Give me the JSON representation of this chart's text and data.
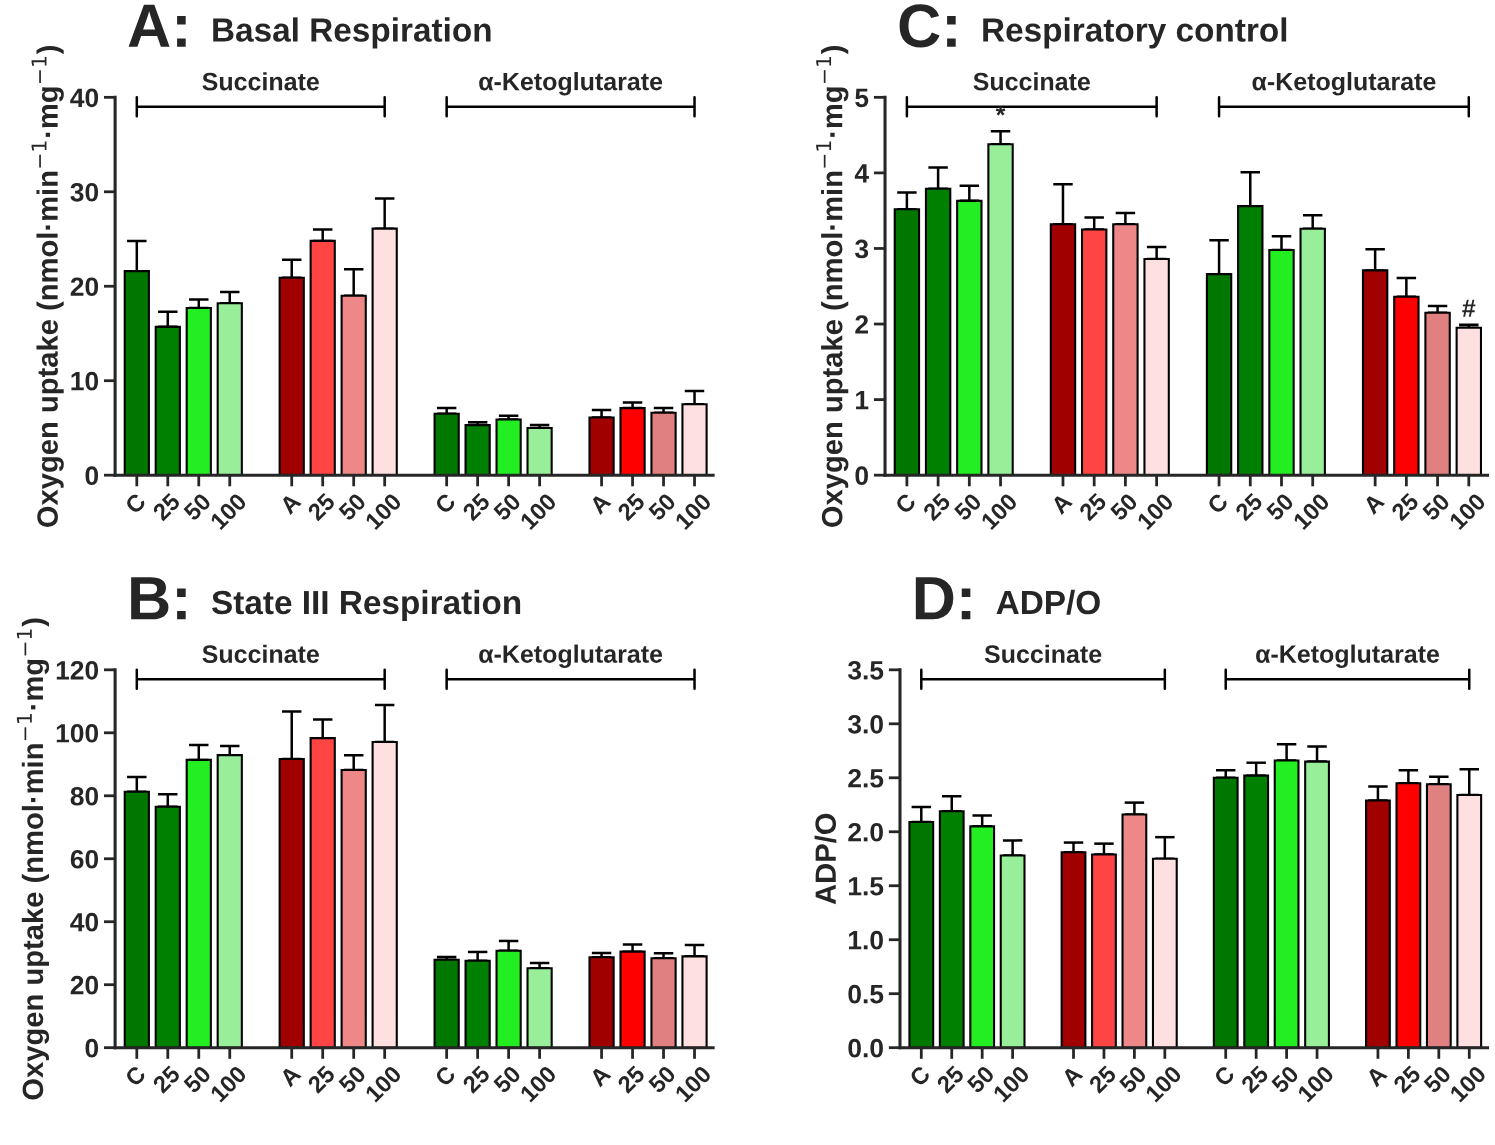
{
  "chart_data": [
    {
      "type": "bar",
      "title": "A:",
      "subtitle": "Basal Respiration",
      "ylabel": "Oxygen uptake (nmol·min$^{−1}$·mg$^{−1}$)",
      "categories": [
        "C",
        "25",
        "50",
        "100",
        null,
        "A",
        "25",
        "50",
        "100",
        null,
        "C",
        "25",
        "50",
        "100",
        null,
        "A",
        "25",
        "50",
        "100"
      ],
      "values": [
        21.6,
        15.7,
        17.7,
        18.2,
        null,
        20.9,
        24.8,
        19.0,
        26.1,
        null,
        6.5,
        5.3,
        5.9,
        5.0,
        null,
        6.1,
        7.1,
        6.6,
        7.5
      ],
      "errors": [
        [
          21.6,
          24.8
        ],
        [
          15.7,
          17.3
        ],
        [
          17.7,
          18.6
        ],
        [
          18.2,
          19.4
        ],
        null,
        [
          20.9,
          22.8
        ],
        [
          24.8,
          26.0
        ],
        [
          19.0,
          21.8
        ],
        [
          26.1,
          29.3
        ],
        null,
        [
          6.5,
          7.1
        ],
        [
          5.3,
          5.6
        ],
        [
          5.9,
          6.3
        ],
        [
          5.0,
          5.3
        ],
        null,
        [
          6.1,
          6.9
        ],
        [
          7.1,
          7.7
        ],
        [
          6.6,
          7.1
        ],
        [
          7.5,
          8.9
        ]
      ],
      "colors": [
        "#007800",
        "#008000",
        "#22ee22",
        "#99ee99",
        null,
        "#a00000",
        "#ff4444",
        "#ee8888",
        "#ffe0e0",
        null,
        "#007800",
        "#008000",
        "#22ee22",
        "#99ee99",
        null,
        "#a00000",
        "#ff0000",
        "#e08080",
        "#ffe0e0"
      ],
      "ylim": [
        0,
        40
      ],
      "yticks": [
        0,
        10,
        20,
        30,
        40
      ],
      "grid": false,
      "legend": false,
      "annotations": [
        "Succinate",
        "α-Ketoglutarate"
      ]
    },
    {
      "type": "bar",
      "title": "C:",
      "subtitle": "Respiratory control",
      "ylabel": "Oxygen uptake (nmol·min$^{−1}$·mg$^{−1}$)",
      "categories": [
        "C",
        "25",
        "50",
        "100",
        null,
        "A",
        "25",
        "50",
        "100",
        null,
        "C",
        "25",
        "50",
        "100",
        null,
        "A",
        "25",
        "50",
        "100"
      ],
      "values": [
        3.52,
        3.79,
        3.63,
        4.38,
        null,
        3.32,
        3.25,
        3.32,
        2.86,
        null,
        2.66,
        3.56,
        2.98,
        3.26,
        null,
        2.71,
        2.36,
        2.15,
        1.95
      ],
      "errors": [
        [
          3.52,
          3.74
        ],
        [
          3.79,
          4.07
        ],
        [
          3.63,
          3.83
        ],
        [
          4.38,
          4.55
        ],
        null,
        [
          3.32,
          3.85
        ],
        [
          3.25,
          3.41
        ],
        [
          3.32,
          3.47
        ],
        [
          2.86,
          3.02
        ],
        null,
        [
          2.66,
          3.11
        ],
        [
          3.56,
          4.01
        ],
        [
          2.98,
          3.16
        ],
        [
          3.26,
          3.44
        ],
        null,
        [
          2.71,
          2.99
        ],
        [
          2.36,
          2.61
        ],
        [
          2.15,
          2.24
        ],
        [
          1.95,
          1.99
        ]
      ],
      "value_labels": [
        null,
        null,
        null,
        "*",
        null,
        null,
        null,
        null,
        null,
        null,
        null,
        null,
        null,
        null,
        null,
        null,
        null,
        null,
        "#"
      ],
      "colors": [
        "#007800",
        "#008000",
        "#22ee22",
        "#99ee99",
        null,
        "#a00000",
        "#ff4444",
        "#ee8888",
        "#ffe0e0",
        null,
        "#007800",
        "#008000",
        "#22ee22",
        "#99ee99",
        null,
        "#a00000",
        "#ff0000",
        "#e08080",
        "#ffe0e0"
      ],
      "ylim": [
        0,
        5
      ],
      "yticks": [
        0,
        1,
        2,
        3,
        4,
        5
      ],
      "grid": false,
      "legend": false,
      "annotations": [
        "Succinate",
        "α-Ketoglutarate"
      ]
    },
    {
      "type": "bar",
      "title": "B:",
      "subtitle": "State III Respiration",
      "ylabel": "Oxygen uptake (nmol·min$^{−1}$·mg$^{−1}$)",
      "categories": [
        "C",
        "25",
        "50",
        "100",
        null,
        "A",
        "25",
        "50",
        "100",
        null,
        "C",
        "25",
        "50",
        "100",
        null,
        "A",
        "25",
        "50",
        "100"
      ],
      "values": [
        81.3,
        76.5,
        91.4,
        92.9,
        null,
        91.7,
        98.3,
        88.2,
        97.1,
        null,
        27.9,
        27.6,
        30.8,
        25.2,
        null,
        28.7,
        30.5,
        28.4,
        29.0
      ],
      "errors": [
        [
          81.3,
          86.0
        ],
        [
          76.5,
          80.5
        ],
        [
          91.4,
          96.1
        ],
        [
          92.9,
          95.8
        ],
        null,
        [
          91.7,
          106.8
        ],
        [
          98.3,
          104.2
        ],
        [
          88.2,
          92.9
        ],
        [
          97.1,
          108.8
        ],
        null,
        [
          27.9,
          28.8
        ],
        [
          27.6,
          30.4
        ],
        [
          30.8,
          33.9
        ],
        [
          25.2,
          26.9
        ],
        null,
        [
          28.7,
          30.1
        ],
        [
          30.5,
          32.8
        ],
        [
          28.4,
          30.0
        ],
        [
          29.0,
          32.6
        ]
      ],
      "colors": [
        "#007800",
        "#008000",
        "#22ee22",
        "#99ee99",
        null,
        "#a00000",
        "#ff4444",
        "#ee8888",
        "#ffe0e0",
        null,
        "#007800",
        "#008000",
        "#22ee22",
        "#99ee99",
        null,
        "#a00000",
        "#ff0000",
        "#e08080",
        "#ffe0e0"
      ],
      "ylim": [
        0,
        120
      ],
      "yticks": [
        0,
        20,
        40,
        60,
        80,
        100,
        120
      ],
      "grid": false,
      "legend": false,
      "annotations": [
        "Succinate",
        "α-Ketoglutarate"
      ]
    },
    {
      "type": "bar",
      "title": "D:",
      "subtitle": "ADP/O",
      "ylabel": "ADP/O",
      "categories": [
        "C",
        "25",
        "50",
        "100",
        null,
        "A",
        "25",
        "50",
        "100",
        null,
        "C",
        "25",
        "50",
        "100",
        null,
        "A",
        "25",
        "50",
        "100"
      ],
      "values": [
        2.09,
        2.19,
        2.05,
        1.78,
        null,
        1.81,
        1.79,
        2.16,
        1.75,
        null,
        2.5,
        2.52,
        2.66,
        2.65,
        null,
        2.29,
        2.45,
        2.44,
        2.34
      ],
      "errors": [
        [
          2.09,
          2.23
        ],
        [
          2.19,
          2.33
        ],
        [
          2.05,
          2.15
        ],
        [
          1.78,
          1.92
        ],
        null,
        [
          1.81,
          1.9
        ],
        [
          1.79,
          1.89
        ],
        [
          2.16,
          2.27
        ],
        [
          1.75,
          1.95
        ],
        null,
        [
          2.5,
          2.57
        ],
        [
          2.52,
          2.64
        ],
        [
          2.66,
          2.81
        ],
        [
          2.65,
          2.79
        ],
        null,
        [
          2.29,
          2.42
        ],
        [
          2.45,
          2.57
        ],
        [
          2.44,
          2.51
        ],
        [
          2.34,
          2.58
        ]
      ],
      "colors": [
        "#007800",
        "#008000",
        "#22ee22",
        "#99ee99",
        null,
        "#a00000",
        "#ff4444",
        "#ee8888",
        "#ffe0e0",
        null,
        "#007800",
        "#008000",
        "#22ee22",
        "#99ee99",
        null,
        "#a00000",
        "#ff0000",
        "#e08080",
        "#ffe0e0"
      ],
      "ylim": [
        0,
        3.5
      ],
      "yticks": [
        {
          "value": 0,
          "label": "0.0"
        },
        {
          "value": 0.5,
          "label": "0.5"
        },
        {
          "value": 1,
          "label": "1.0"
        },
        {
          "value": 1.5,
          "label": "1.5"
        },
        {
          "value": 2,
          "label": "2.0"
        },
        {
          "value": 2.5,
          "label": "2.5"
        },
        {
          "value": 3,
          "label": "3.0"
        },
        {
          "value": 3.5,
          "label": "3.5"
        }
      ],
      "grid": false,
      "legend": false,
      "annotations": [
        "Succinate",
        "α-Ketoglutarate"
      ]
    }
  ]
}
